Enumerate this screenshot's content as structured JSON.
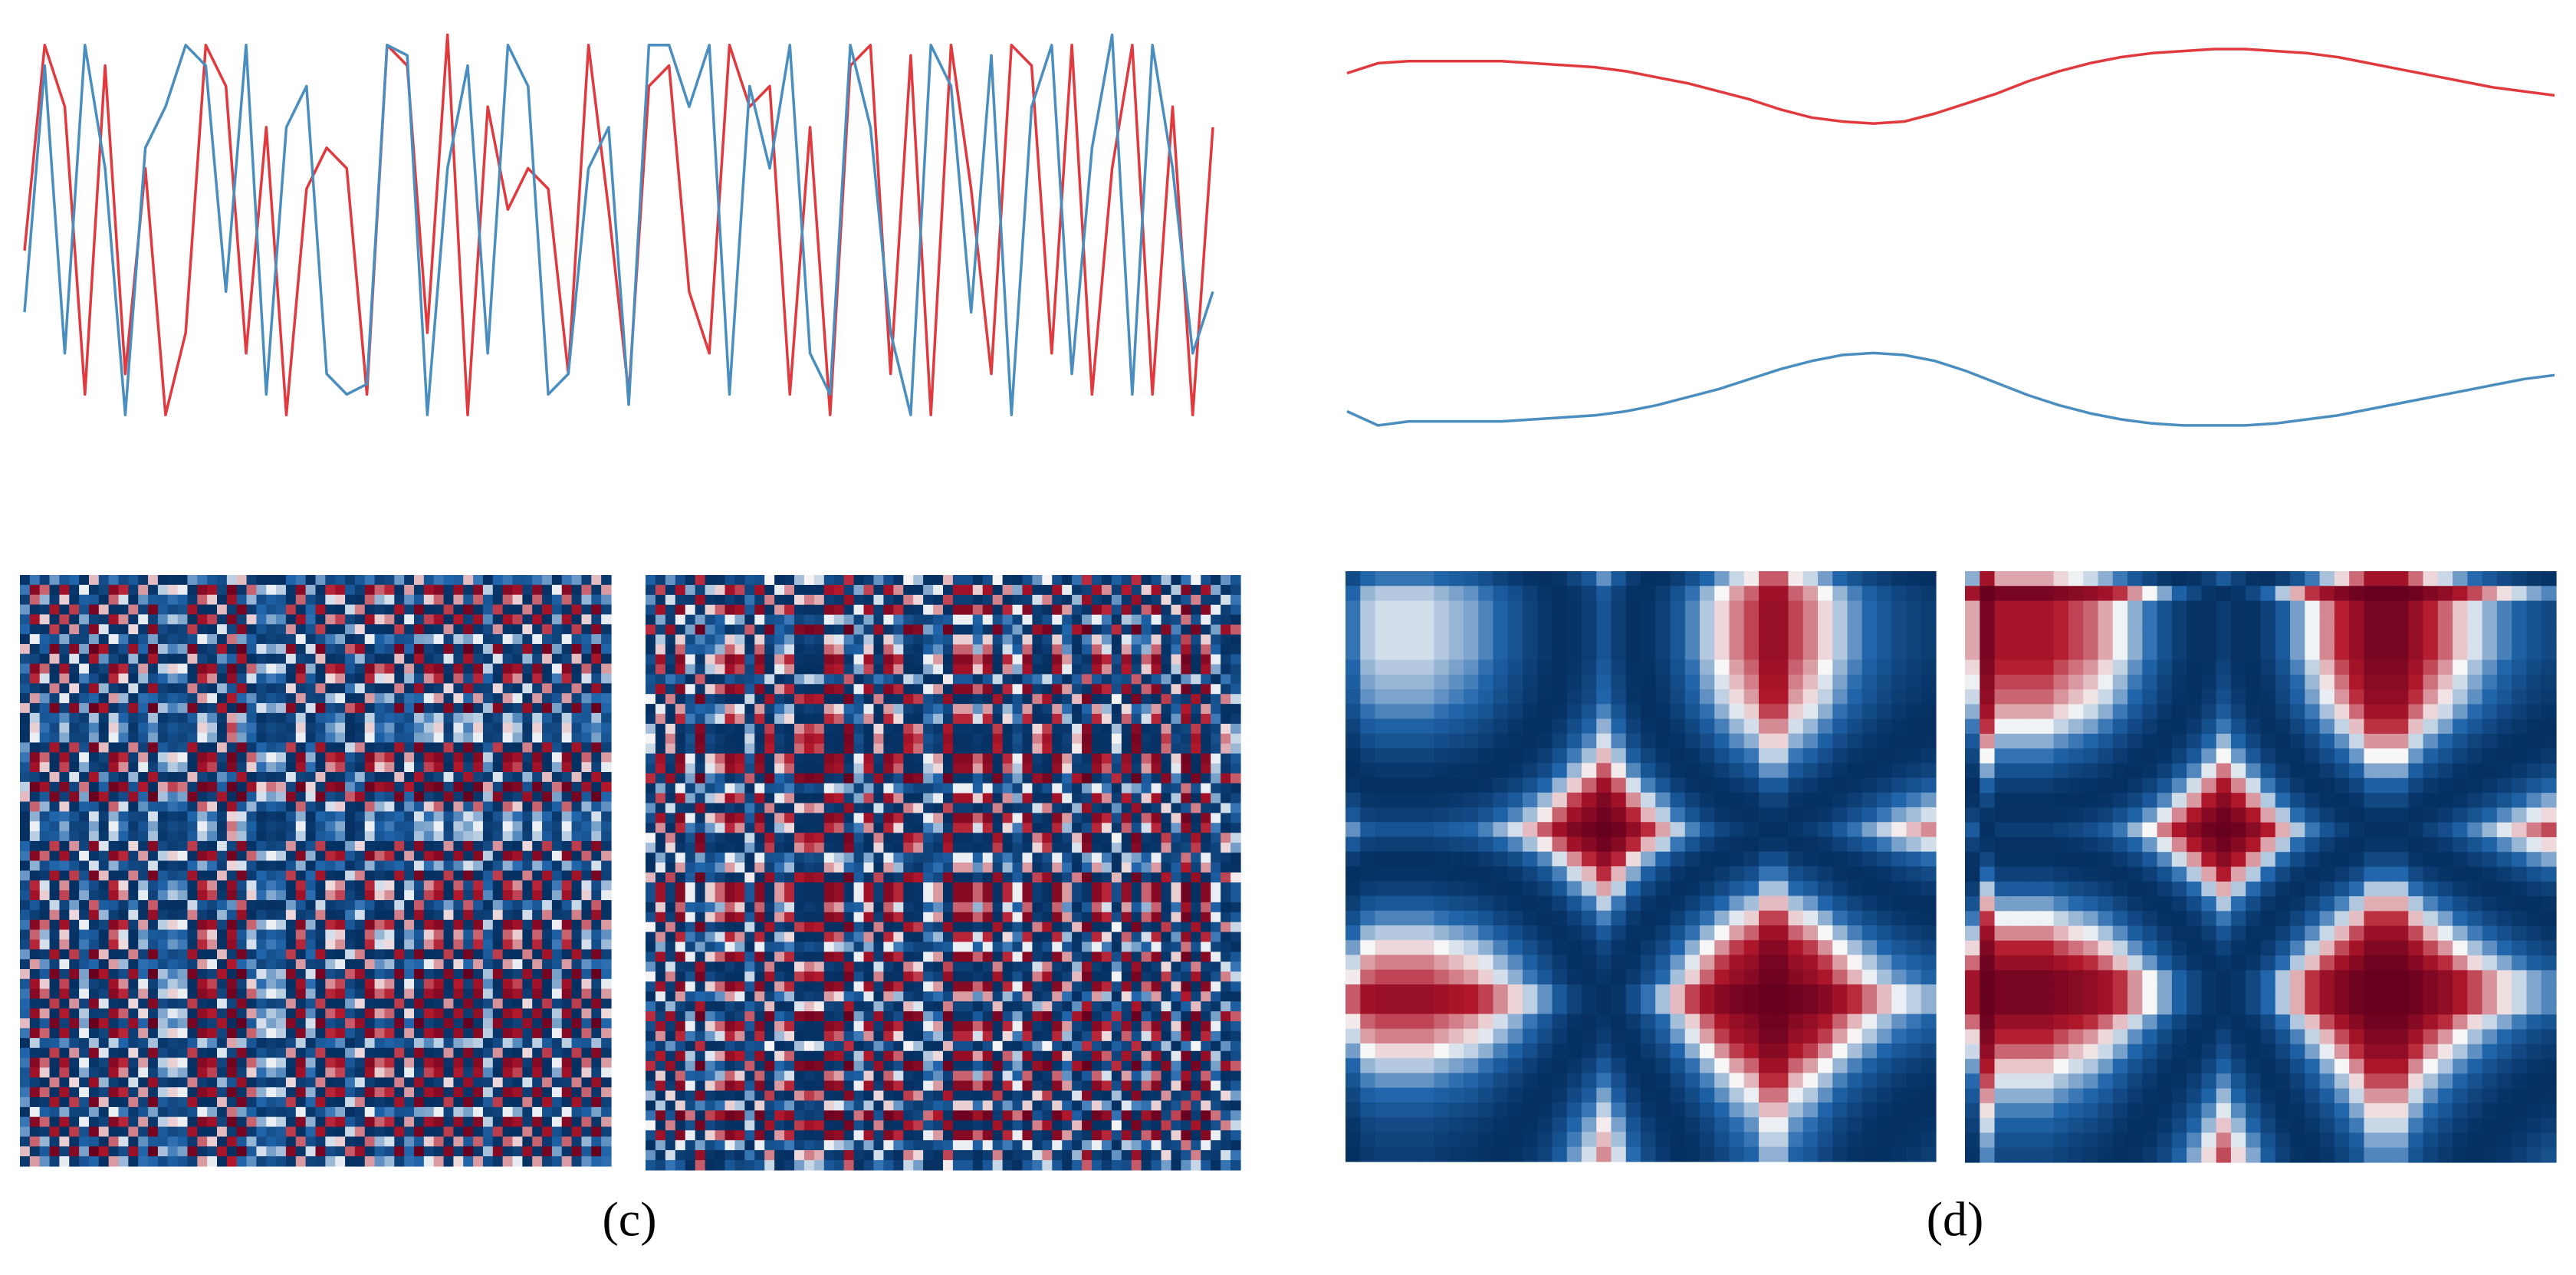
{
  "chart_data": [
    {
      "type": "line",
      "title": "(c)",
      "ylim": [
        -1,
        1
      ],
      "gramian": true,
      "series": [
        {
          "color": "#e0393e",
          "values": [
            -0.1,
            0.9,
            0.6,
            -0.8,
            0.8,
            -0.7,
            0.3,
            -0.9,
            -0.5,
            0.9,
            0.7,
            -0.6,
            0.5,
            -0.9,
            0.2,
            0.4,
            0.3,
            -0.8,
            0.9,
            0.8,
            -0.5,
            0.95,
            -0.9,
            0.6,
            0.1,
            0.3,
            0.2,
            -0.7,
            0.9,
            0.1,
            -0.8,
            0.7,
            0.8,
            -0.3,
            -0.6,
            0.9,
            0.6,
            0.7,
            -0.8,
            0.5,
            -0.9,
            0.8,
            0.9,
            -0.7,
            0.85,
            -0.9,
            0.9,
            0.2,
            -0.7,
            0.9,
            0.8,
            -0.6,
            0.9,
            -0.8,
            0.3,
            0.9,
            -0.8,
            0.6,
            -0.9,
            0.5
          ]
        },
        {
          "color": "#4a8dbf",
          "values": [
            -0.4,
            0.8,
            -0.6,
            0.9,
            0.3,
            -0.9,
            0.4,
            0.6,
            0.9,
            0.8,
            -0.3,
            0.9,
            -0.8,
            0.5,
            0.7,
            -0.7,
            -0.8,
            -0.75,
            0.9,
            0.85,
            -0.9,
            0.3,
            0.8,
            -0.6,
            0.9,
            0.7,
            -0.8,
            -0.7,
            0.3,
            0.5,
            -0.85,
            0.9,
            0.9,
            0.6,
            0.9,
            -0.8,
            0.7,
            0.3,
            0.9,
            -0.6,
            -0.8,
            0.9,
            0.5,
            -0.5,
            -0.9,
            0.9,
            0.7,
            -0.4,
            0.85,
            -0.9,
            0.6,
            0.9,
            -0.7,
            0.4,
            0.95,
            -0.8,
            0.9,
            0.3,
            -0.6,
            -0.3
          ]
        }
      ]
    },
    {
      "type": "line",
      "title": "(d)",
      "ylim": [
        -1,
        1
      ],
      "gramian": true,
      "series": [
        {
          "color": "#e0393e",
          "values": [
            0.8,
            0.85,
            0.86,
            0.86,
            0.86,
            0.86,
            0.85,
            0.84,
            0.83,
            0.81,
            0.78,
            0.75,
            0.71,
            0.67,
            0.62,
            0.58,
            0.56,
            0.55,
            0.56,
            0.6,
            0.65,
            0.7,
            0.76,
            0.81,
            0.85,
            0.88,
            0.9,
            0.91,
            0.92,
            0.92,
            0.91,
            0.9,
            0.88,
            0.85,
            0.82,
            0.79,
            0.76,
            0.73,
            0.71,
            0.69
          ]
        },
        {
          "color": "#4a8dbf",
          "values": [
            -0.88,
            -0.95,
            -0.93,
            -0.93,
            -0.93,
            -0.93,
            -0.92,
            -0.91,
            -0.9,
            -0.88,
            -0.85,
            -0.81,
            -0.77,
            -0.72,
            -0.67,
            -0.63,
            -0.6,
            -0.59,
            -0.6,
            -0.63,
            -0.68,
            -0.74,
            -0.8,
            -0.85,
            -0.89,
            -0.92,
            -0.94,
            -0.95,
            -0.95,
            -0.95,
            -0.94,
            -0.92,
            -0.9,
            -0.87,
            -0.84,
            -0.81,
            -0.78,
            -0.75,
            -0.72,
            -0.7
          ]
        }
      ]
    }
  ]
}
